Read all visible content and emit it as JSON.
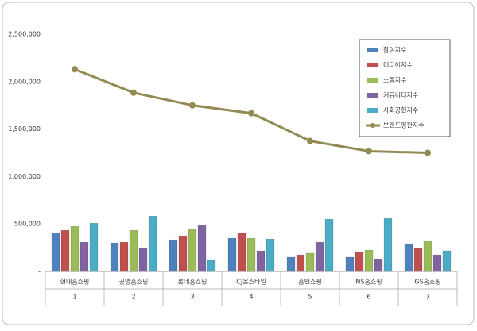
{
  "chart_data": {
    "type": "bar",
    "categories": [
      "현대홈쇼핑",
      "공영홈쇼핑",
      "롯데홈쇼핑",
      "CJ온스타일",
      "홈앤쇼핑",
      "NS홈쇼핑",
      "GS홈쇼핑"
    ],
    "ranks": [
      1,
      2,
      3,
      4,
      5,
      6,
      7
    ],
    "series": [
      {
        "name": "참여지수",
        "color": "#4f81bd",
        "values": [
          408000,
          300000,
          333000,
          350000,
          150000,
          150000,
          292000
        ]
      },
      {
        "name": "미디어지수",
        "color": "#c0504d",
        "values": [
          433000,
          308000,
          375000,
          408000,
          175000,
          208000,
          242000
        ]
      },
      {
        "name": "소통지수",
        "color": "#9bbb59",
        "values": [
          475000,
          433000,
          442000,
          350000,
          192000,
          225000,
          325000
        ]
      },
      {
        "name": "커뮤니티지수",
        "color": "#8064a2",
        "values": [
          308000,
          250000,
          483000,
          217000,
          308000,
          133000,
          175000
        ]
      },
      {
        "name": "사회공헌지수",
        "color": "#4bacc6",
        "values": [
          508000,
          583000,
          117000,
          342000,
          550000,
          558000,
          217000
        ]
      },
      {
        "name": "브랜드평판지수",
        "color": "#948a54",
        "type": "line",
        "values": [
          2130000,
          1883000,
          1750000,
          1667000,
          1375000,
          1267000,
          1250000
        ]
      }
    ],
    "ylim": [
      0,
      2500000
    ],
    "yticks": [
      {
        "value": 0,
        "label": "-"
      },
      {
        "value": 500000,
        "label": "500,000"
      },
      {
        "value": 1000000,
        "label": "1,000,000"
      },
      {
        "value": 1500000,
        "label": "1,500,000"
      },
      {
        "value": 2000000,
        "label": "2,000,000"
      },
      {
        "value": 2500000,
        "label": "2,500,000"
      }
    ],
    "grid": false,
    "legend": "top-right"
  }
}
